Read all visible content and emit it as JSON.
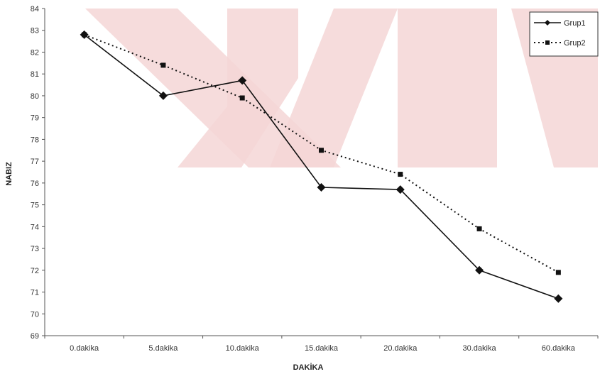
{
  "chart_data": {
    "type": "line",
    "title": "",
    "xlabel": "DAKİKA",
    "ylabel": "NABIZ",
    "categories": [
      "0.dakika",
      "5.dakika",
      "10.dakika",
      "15.dakika",
      "20.dakika",
      "30.dakika",
      "60.dakika"
    ],
    "ylim": [
      69,
      84
    ],
    "yticks": [
      69,
      70,
      71,
      72,
      73,
      74,
      75,
      76,
      77,
      78,
      79,
      80,
      81,
      82,
      83,
      84
    ],
    "grid": false,
    "legend_position": "top-right",
    "series": [
      {
        "name": "Grup1",
        "values": [
          82.8,
          80.0,
          80.7,
          75.8,
          75.7,
          72.0,
          70.7
        ],
        "line_style": "solid",
        "marker": "diamond",
        "color": "#111111"
      },
      {
        "name": "Grup2",
        "values": [
          82.8,
          81.4,
          79.9,
          77.5,
          76.4,
          73.9,
          71.9
        ],
        "line_style": "dotted",
        "marker": "square",
        "color": "#111111"
      }
    ]
  },
  "colors": {
    "watermark": "#f4d6d6",
    "axis": "#555555",
    "series": "#111111"
  }
}
